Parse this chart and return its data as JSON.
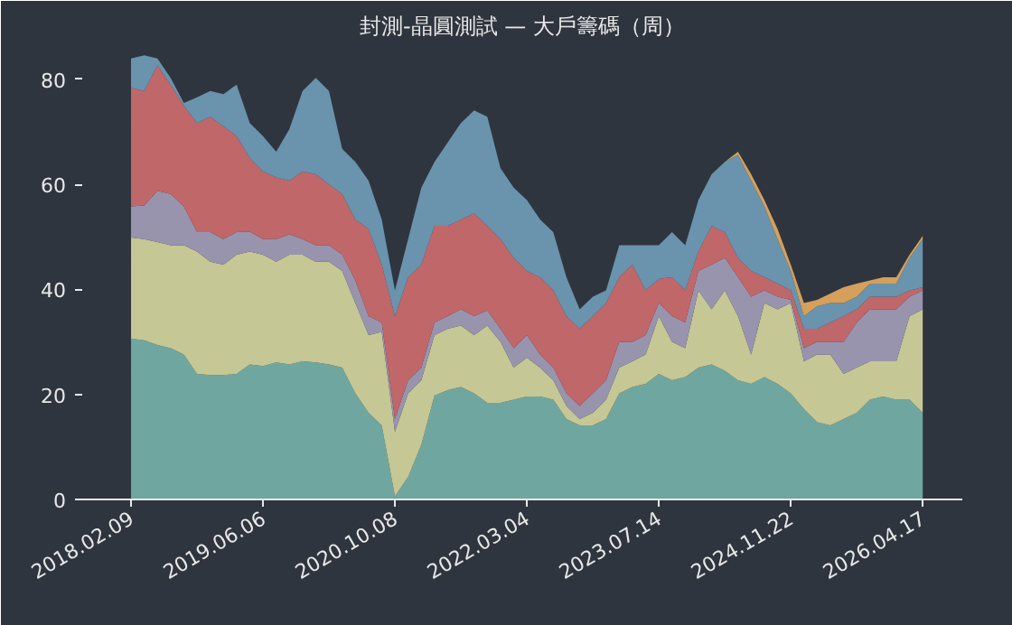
{
  "chart_data": {
    "type": "area",
    "stacked": true,
    "title": "封測-晶圓測試 — 大戶籌碼（周）",
    "categories": [
      "2018.02.09",
      null,
      null,
      null,
      null,
      null,
      null,
      null,
      null,
      null,
      "2019.06.06",
      null,
      null,
      null,
      null,
      null,
      null,
      null,
      null,
      null,
      "2020.10.08",
      null,
      null,
      null,
      null,
      null,
      null,
      null,
      null,
      null,
      "2022.03.04",
      null,
      null,
      null,
      null,
      null,
      null,
      null,
      null,
      null,
      "2023.07.14",
      null,
      null,
      null,
      null,
      null,
      null,
      null,
      null,
      null,
      "2024.11.22",
      null,
      null,
      null,
      null,
      null,
      null,
      null,
      null,
      null,
      "2026.04.17"
    ],
    "series": [
      {
        "color": "#6fa7a0",
        "values": [
          30.6,
          30.3,
          29.4,
          28.8,
          27.6,
          23.9,
          23.7,
          23.7,
          23.9,
          25.7,
          25.4,
          26.1,
          25.7,
          26.3,
          26.1,
          25.7,
          25.1,
          20.2,
          16.5,
          14.1,
          0.6,
          4.3,
          10.4,
          19.8,
          20.8,
          21.4,
          20.2,
          18.4,
          18.4,
          19,
          19.6,
          19.6,
          19,
          15.3,
          14.1,
          14.1,
          15.3,
          20.2,
          21.4,
          22,
          23.9,
          22.7,
          23.3,
          25.1,
          25.7,
          24.5,
          22.7,
          22,
          23.3,
          22,
          20.2,
          17.2,
          14.7,
          14.1,
          15.3,
          16.5,
          19,
          19.6,
          19,
          19,
          16.5
        ]
      },
      {
        "color": "#c5c795",
        "values": [
          19.3,
          19.3,
          19.6,
          19.6,
          20.8,
          23.3,
          21.6,
          21,
          22.7,
          21.5,
          21.2,
          19.2,
          20.9,
          20.3,
          19.2,
          19.6,
          18.4,
          17.2,
          14.8,
          17.8,
          12.3,
          15.9,
          12.3,
          11.5,
          11.7,
          11.7,
          11.1,
          14.7,
          11.6,
          6.1,
          7.4,
          5.5,
          3.7,
          2.5,
          1.2,
          2.4,
          3.7,
          4.9,
          4.9,
          5.6,
          11,
          7.3,
          5.5,
          14.7,
          10.5,
          15.3,
          12.2,
          5.6,
          14.1,
          14.2,
          17.2,
          9.1,
          12.9,
          13.5,
          8.6,
          8.6,
          7.3,
          6.7,
          7.3,
          15.9,
          19.7
        ]
      },
      {
        "color": "#9994ad",
        "values": [
          5.9,
          6.4,
          9.8,
          9.8,
          7.4,
          3.7,
          5.6,
          4.9,
          4.3,
          3.8,
          3,
          4.3,
          3.9,
          3,
          3.1,
          3.1,
          3.1,
          4.3,
          3.6,
          1.8,
          2.4,
          2.5,
          2.4,
          2.4,
          2.4,
          3.1,
          3.6,
          2.9,
          2.5,
          3.7,
          4.3,
          2.5,
          2.4,
          2.4,
          2.5,
          3.7,
          3.7,
          4.9,
          3.7,
          3.7,
          2.5,
          4.9,
          4.9,
          3.7,
          8.5,
          6.2,
          7.4,
          11,
          2.4,
          2.4,
          0.6,
          2.5,
          2.4,
          2.4,
          6.1,
          8.6,
          9.9,
          9.9,
          9.9,
          3.7,
          3.6
        ]
      },
      {
        "color": "#c0676a",
        "values": [
          22.6,
          21.8,
          23.9,
          20.8,
          19.2,
          20.8,
          22,
          21.5,
          18.3,
          14,
          12.9,
          11.7,
          10.2,
          12.9,
          13.5,
          11.6,
          11.6,
          11.6,
          16.6,
          11,
          19.6,
          19.6,
          19.6,
          18.4,
          17.2,
          17.1,
          19.6,
          16.1,
          17.1,
          17.2,
          12.2,
          14.7,
          14.7,
          14.7,
          14.7,
          14.7,
          14.7,
          12.3,
          14.7,
          8.5,
          4.6,
          7.4,
          6.1,
          3.7,
          7.4,
          4.9,
          3.7,
          4.9,
          2.5,
          2.5,
          1.8,
          3.7,
          2.5,
          3.7,
          4.9,
          2.5,
          2.4,
          2.4,
          2.4,
          1.2,
          0.6
        ]
      },
      {
        "color": "#6a93ad",
        "values": [
          5.6,
          6.8,
          1.3,
          1.3,
          0.5,
          4.9,
          4.9,
          6.1,
          9.8,
          6.7,
          6.7,
          4.9,
          9.8,
          15.3,
          18.4,
          17.8,
          8.6,
          11,
          9.2,
          8.6,
          4.9,
          7.3,
          14.7,
          12.2,
          15.9,
          18.4,
          19.6,
          20.8,
          13.5,
          13.4,
          13.5,
          11,
          11.1,
          7.4,
          3.7,
          3.7,
          2.4,
          6.1,
          3.7,
          8.6,
          6.4,
          8.6,
          8.6,
          9.8,
          9.8,
          13.4,
          19.6,
          17.2,
          13.5,
          8.5,
          3.7,
          2.4,
          4.3,
          3.7,
          2.5,
          2.4,
          2.5,
          2.5,
          2.5,
          6.2,
          9.2
        ]
      },
      {
        "color": "#d4a05c",
        "values": [
          0,
          0,
          0,
          0,
          0,
          0,
          0,
          0,
          0,
          0,
          0,
          0,
          0,
          0,
          0,
          0,
          0,
          0,
          0,
          0,
          0,
          0,
          0,
          0,
          0,
          0,
          0,
          0,
          0,
          0,
          0,
          0,
          0,
          0,
          0,
          0,
          0,
          0,
          0,
          0,
          0,
          0,
          0,
          0,
          0,
          0,
          0.6,
          1.2,
          1.2,
          1.9,
          1.2,
          2.5,
          1.2,
          1.8,
          3,
          2.5,
          0.6,
          1.2,
          1.2,
          0.6,
          0.6
        ]
      }
    ],
    "ylim": [
      0,
      86
    ],
    "yticks": [
      0,
      20,
      40,
      60,
      80
    ],
    "grid": false
  }
}
